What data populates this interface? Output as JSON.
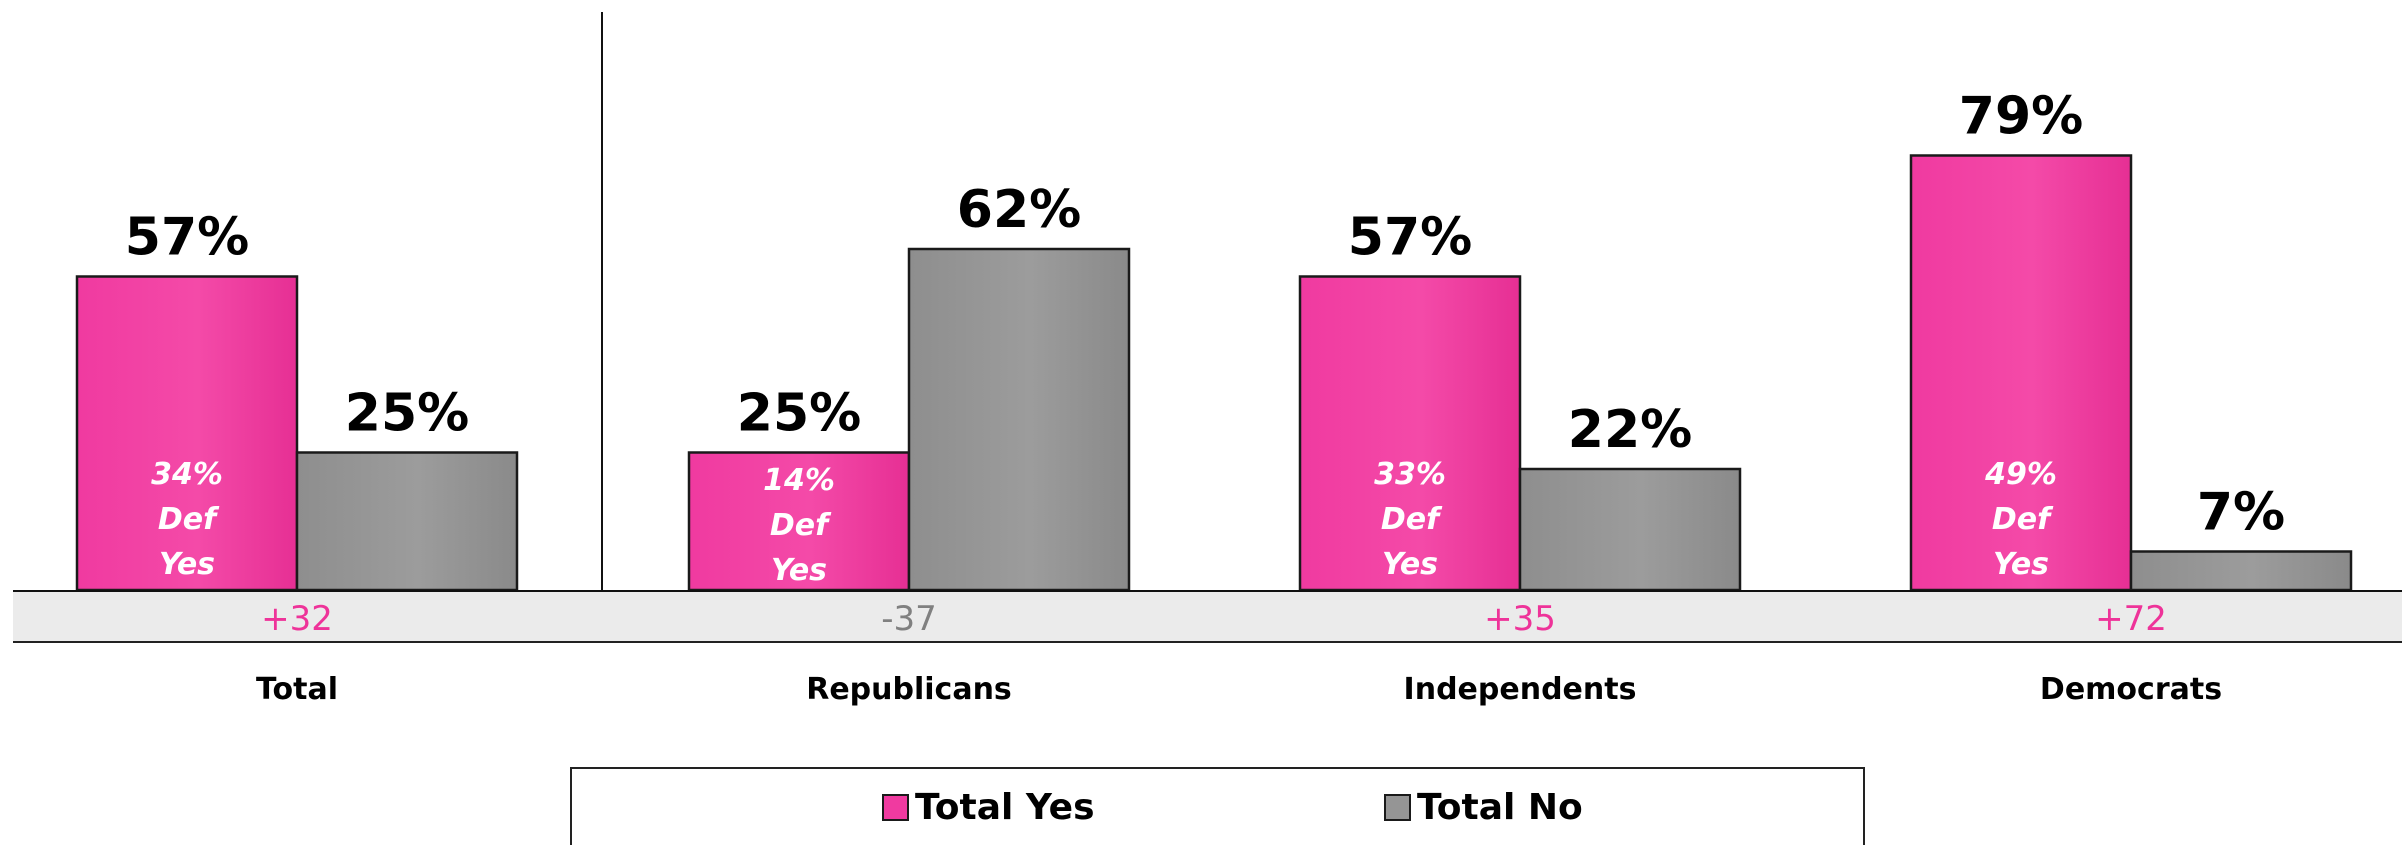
{
  "chart_data": {
    "type": "bar",
    "categories": [
      "Total",
      "Republicans",
      "Independents",
      "Democrats"
    ],
    "series": [
      {
        "name": "Total Yes",
        "values": [
          57,
          25,
          57,
          79
        ]
      },
      {
        "name": "Total No",
        "values": [
          25,
          62,
          22,
          7
        ]
      }
    ],
    "value_labels": {
      "yes": [
        "57%",
        "25%",
        "57%",
        "79%"
      ],
      "no": [
        "25%",
        "62%",
        "22%",
        "7%"
      ]
    },
    "def_yes": [
      {
        "pct": "34%",
        "line2": "Def",
        "line3": "Yes"
      },
      {
        "pct": "14%",
        "line2": "Def",
        "line3": "Yes"
      },
      {
        "pct": "33%",
        "line2": "Def",
        "line3": "Yes"
      },
      {
        "pct": "49%",
        "line2": "Def",
        "line3": "Yes"
      }
    ],
    "differences": [
      "+32",
      "-37",
      "+35",
      "+72"
    ],
    "difference_colors": [
      "#ee3399",
      "#808080",
      "#ee3399",
      "#ee3399"
    ],
    "colors": {
      "yes": "#f03aa0",
      "no": "#959595"
    },
    "ylim": [
      0,
      100
    ],
    "legend_position": "bottom",
    "grid": false
  }
}
